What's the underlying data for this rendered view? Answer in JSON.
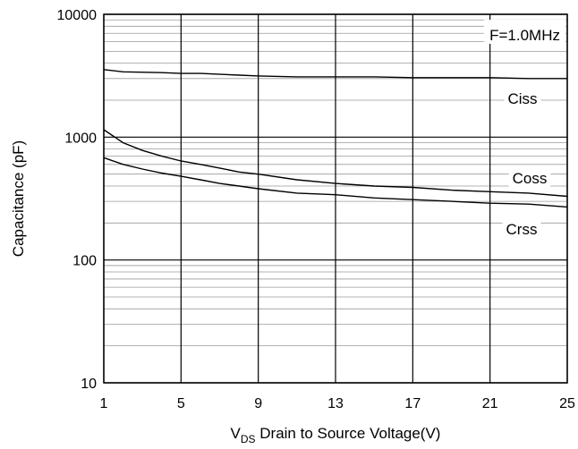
{
  "chart_data": {
    "type": "line",
    "title": "",
    "xlabel": {
      "prefix": "V",
      "subscript": "DS",
      "text": " Drain to Source Voltage(V)"
    },
    "ylabel": "Capacitance (pF)",
    "xlim": [
      1,
      25
    ],
    "ylim": [
      10,
      10000
    ],
    "yscale": "log",
    "grid": true,
    "xticks": [
      1,
      5,
      9,
      13,
      17,
      21,
      25
    ],
    "xtick_labels": [
      "1",
      "5",
      "9",
      "13",
      "17",
      "21",
      "25"
    ],
    "yticks": [
      10,
      100,
      1000,
      10000
    ],
    "ytick_labels": [
      "10",
      "100",
      "1000",
      "10000"
    ],
    "annotation": "F=1.0MHz",
    "series": [
      {
        "name": "Ciss",
        "x": [
          1,
          2,
          4,
          5,
          6,
          8,
          9,
          11,
          13,
          15,
          17,
          19,
          21,
          23,
          25
        ],
        "y": [
          3550,
          3400,
          3350,
          3300,
          3300,
          3200,
          3150,
          3100,
          3100,
          3100,
          3050,
          3050,
          3050,
          3000,
          3000
        ]
      },
      {
        "name": "Coss",
        "x": [
          1,
          2,
          3,
          4,
          5,
          6,
          7,
          8,
          9,
          11,
          13,
          15,
          17,
          19,
          21,
          23,
          25
        ],
        "y": [
          1150,
          900,
          780,
          700,
          640,
          600,
          560,
          520,
          500,
          450,
          420,
          400,
          390,
          370,
          360,
          350,
          330
        ]
      },
      {
        "name": "Crss",
        "x": [
          1,
          2,
          3,
          4,
          5,
          6,
          7,
          8,
          9,
          11,
          13,
          15,
          17,
          19,
          21,
          23,
          25
        ],
        "y": [
          680,
          600,
          550,
          510,
          480,
          450,
          420,
          400,
          380,
          350,
          340,
          320,
          310,
          300,
          290,
          285,
          270
        ]
      }
    ]
  }
}
